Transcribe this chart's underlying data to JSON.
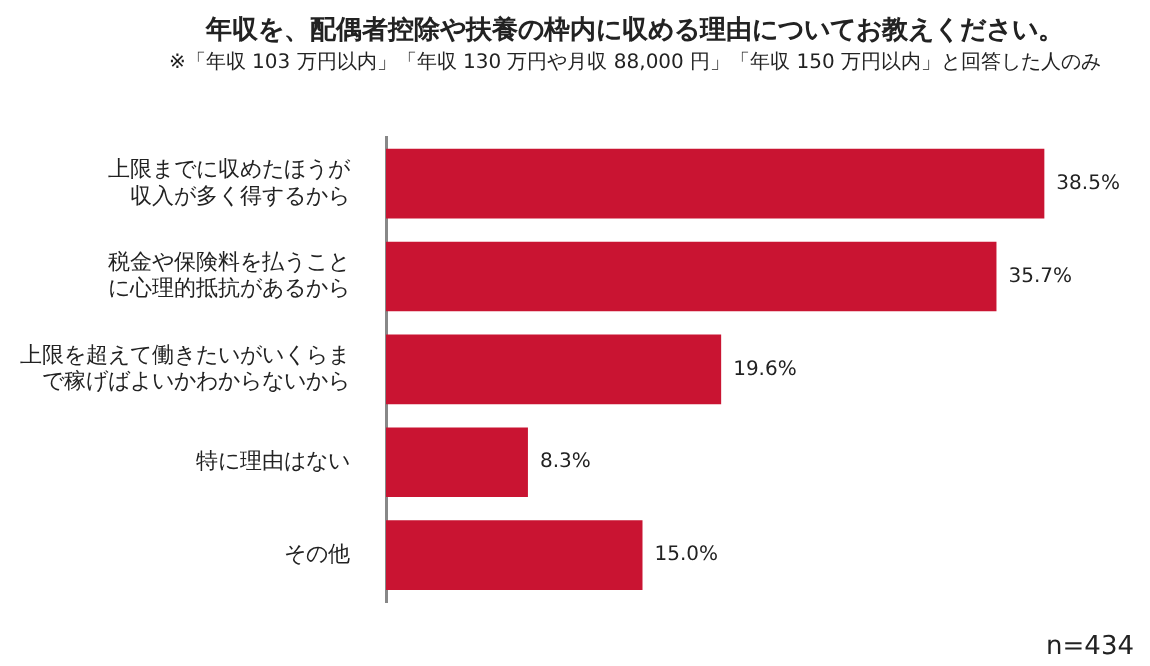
{
  "chart_data": {
    "type": "bar",
    "orientation": "horizontal",
    "title": "年収を、配偶者控除や扶養の枠内に収める理由についてお教えください。",
    "subtitle": "※「年収 103 万円以内」「年収 130 万円や月収 88,000 円」「年収 150 万円以内」と回答した人のみ",
    "categories": [
      "上限までに収めたほうが収入が多く得するから",
      "税金や保険料を払うことに心理的抵抗があるから",
      "上限を超えて働きたいがいくらまで稼げばよいかわからないから",
      "特に理由はない",
      "その他"
    ],
    "values": [
      38.5,
      35.7,
      19.6,
      8.3,
      15.0
    ],
    "value_labels": [
      "38.5%",
      "35.7%",
      "19.6%",
      "8.3%",
      "15.0%"
    ],
    "color": "#c91432",
    "annotations": [
      "n=434"
    ],
    "grid": false,
    "legend": false
  }
}
